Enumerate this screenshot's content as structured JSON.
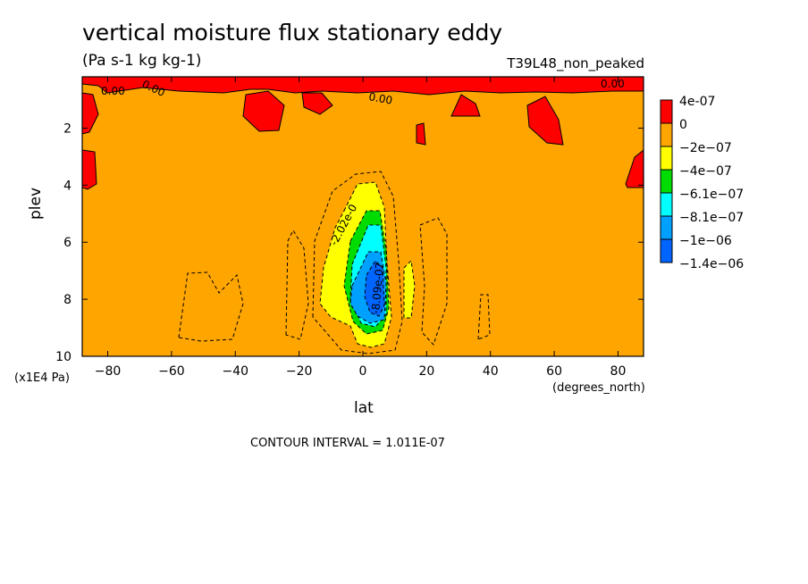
{
  "chart_data": {
    "type": "contour",
    "title": "vertical moisture flux stationary eddy",
    "subtitle": "(Pa s-1 kg kg-1)",
    "run_label": "T39L48_non_peaked",
    "xlabel": "lat",
    "xunit": "(degrees_north)",
    "ylabel": "plev",
    "yunit": "(x1E4 Pa)",
    "contour_interval_text": "CONTOUR INTERVAL = 1.011E-07",
    "xlim": [
      -88,
      88
    ],
    "ylim": [
      10,
      0.2
    ],
    "x_ticks": [
      -80,
      -60,
      -40,
      -20,
      0,
      20,
      40,
      60,
      80
    ],
    "y_ticks": [
      2,
      4,
      6,
      8,
      10
    ],
    "legend": {
      "levels": [
        {
          "label": "4e-07",
          "color": "#ff0000"
        },
        {
          "label": "0",
          "color": "#ffa500"
        },
        {
          "label": "−2e−07",
          "color": "#ffff00"
        },
        {
          "label": "−4e−07",
          "color": "#00dc00"
        },
        {
          "label": "−6.1e−07",
          "color": "#00ffff"
        },
        {
          "label": "−8.1e−07",
          "color": "#00a0ff"
        },
        {
          "label": "−1e−06",
          "color": "#0064ff"
        },
        {
          "label": "−1.4e−06",
          "color": "#000000"
        }
      ]
    },
    "contour_labels": [
      "0.00",
      "0.00",
      "0.00",
      "0.00",
      "-2.02e-0",
      "-8.09e-07"
    ]
  }
}
